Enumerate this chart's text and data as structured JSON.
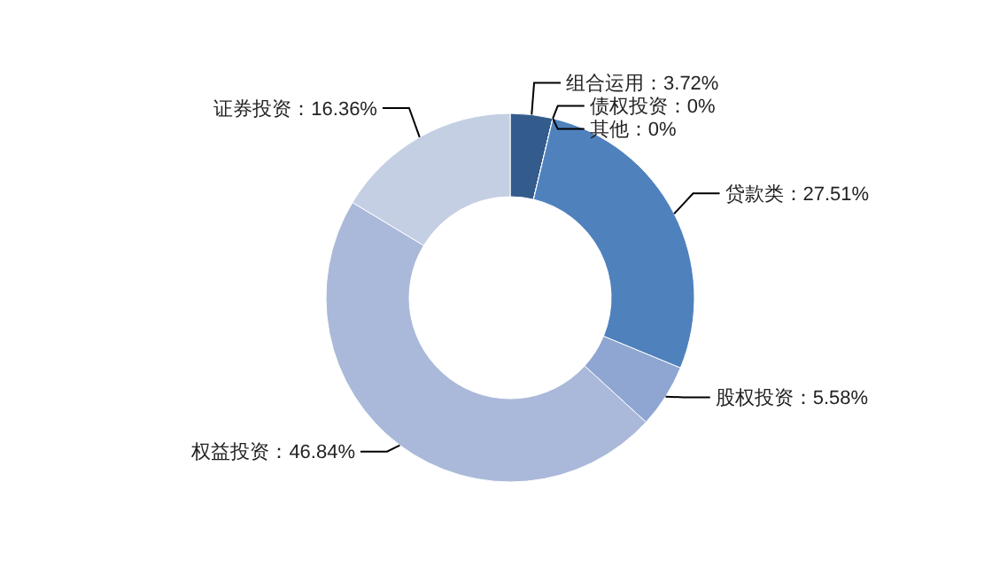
{
  "chart_data": {
    "type": "donut",
    "categories": [
      "组合运用",
      "债权投资",
      "其他",
      "贷款类",
      "股权投资",
      "权益投资",
      "证券投资"
    ],
    "values": [
      3.72,
      0,
      0,
      27.51,
      5.58,
      46.84,
      16.36
    ],
    "value_labels": [
      "3.72%",
      "0%",
      "0%",
      "27.51%",
      "5.58%",
      "46.84%",
      "16.36%"
    ],
    "colors": [
      "#335c8c",
      "#3f6fa8",
      "#5a82b8",
      "#4f81bd",
      "#8ea6d1",
      "#aab9d9",
      "#c4cfe3"
    ]
  }
}
